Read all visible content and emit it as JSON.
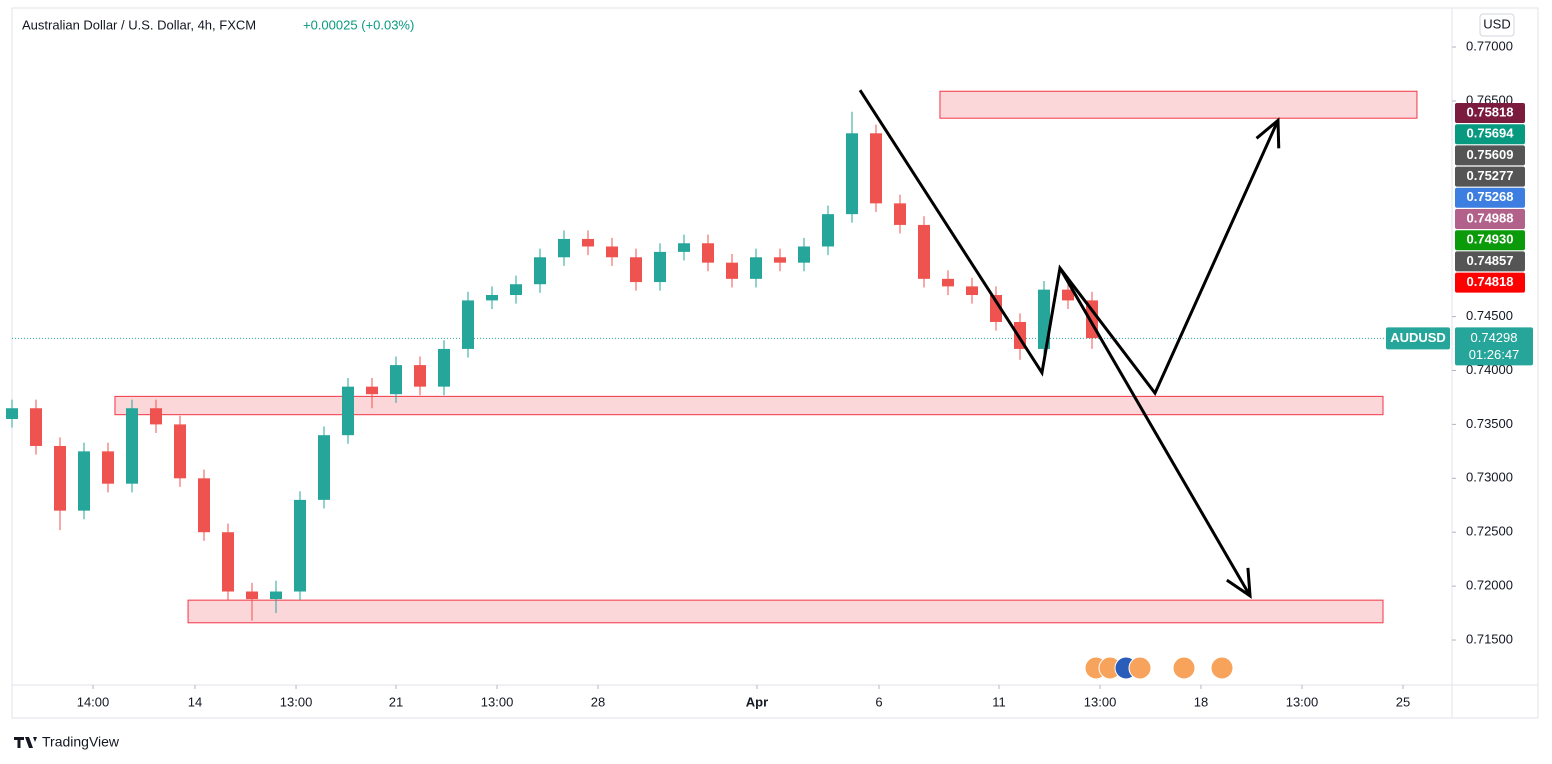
{
  "chart_data": {
    "type": "candlestick",
    "title": "Australian Dollar / U.S. Dollar, 4h, FXCM",
    "change": "+0.00025 (+0.03%)",
    "currency": "USD",
    "branding": "TradingView",
    "up_color": "#26a69a",
    "down_color": "#ef5350",
    "x": [
      0,
      2,
      4,
      6,
      8,
      10,
      12,
      14,
      16,
      18,
      20,
      22,
      24,
      26,
      28,
      30,
      32,
      34,
      36,
      38,
      40,
      42,
      44,
      46,
      48,
      50,
      52,
      54,
      56,
      58,
      60,
      62,
      64,
      66,
      68,
      70,
      72,
      74,
      76,
      78,
      80,
      82,
      84,
      86,
      88,
      90
    ],
    "open": [
      0.7355,
      0.7365,
      0.733,
      0.727,
      0.7325,
      0.7295,
      0.7365,
      0.735,
      0.73,
      0.725,
      0.7195,
      0.7188,
      0.7195,
      0.728,
      0.734,
      0.7385,
      0.7378,
      0.7405,
      0.7385,
      0.742,
      0.7465,
      0.747,
      0.748,
      0.7505,
      0.7522,
      0.7515,
      0.7505,
      0.7482,
      0.751,
      0.7518,
      0.75,
      0.7485,
      0.7505,
      0.75,
      0.7515,
      0.7545,
      0.762,
      0.7555,
      0.7535,
      0.7485,
      0.7478,
      0.747,
      0.7445,
      0.742,
      0.7475,
      0.7465
    ],
    "high": [
      0.7373,
      0.7373,
      0.7338,
      0.7333,
      0.7333,
      0.7373,
      0.7373,
      0.7358,
      0.7308,
      0.7258,
      0.7203,
      0.7205,
      0.7288,
      0.7348,
      0.7393,
      0.7393,
      0.7413,
      0.7413,
      0.7428,
      0.7473,
      0.7478,
      0.7488,
      0.7513,
      0.753,
      0.753,
      0.7523,
      0.7513,
      0.7518,
      0.7526,
      0.7526,
      0.7508,
      0.7513,
      0.7513,
      0.7523,
      0.7553,
      0.764,
      0.7628,
      0.7563,
      0.7543,
      0.7493,
      0.7486,
      0.7478,
      0.7453,
      0.7483,
      0.7483,
      0.7473
    ],
    "low": [
      0.7347,
      0.7322,
      0.7252,
      0.7262,
      0.7287,
      0.7287,
      0.7342,
      0.7292,
      0.7242,
      0.7187,
      0.7168,
      0.7175,
      0.7187,
      0.7272,
      0.7332,
      0.7365,
      0.737,
      0.7377,
      0.7377,
      0.7412,
      0.7457,
      0.7462,
      0.7472,
      0.7497,
      0.7507,
      0.7497,
      0.7474,
      0.7474,
      0.7502,
      0.7492,
      0.7477,
      0.7477,
      0.7492,
      0.7492,
      0.7507,
      0.7537,
      0.7547,
      0.7527,
      0.7477,
      0.747,
      0.7462,
      0.7437,
      0.741,
      0.7412,
      0.7457,
      0.742
    ],
    "close": [
      0.7365,
      0.733,
      0.727,
      0.7325,
      0.7295,
      0.7365,
      0.735,
      0.73,
      0.725,
      0.7195,
      0.7188,
      0.7195,
      0.728,
      0.734,
      0.7385,
      0.7378,
      0.7405,
      0.7385,
      0.742,
      0.7465,
      0.747,
      0.748,
      0.7505,
      0.7522,
      0.7515,
      0.7505,
      0.7482,
      0.751,
      0.7518,
      0.75,
      0.7485,
      0.7505,
      0.75,
      0.7515,
      0.7545,
      0.762,
      0.7555,
      0.7535,
      0.7485,
      0.7478,
      0.747,
      0.7445,
      0.742,
      0.7475,
      0.7465,
      0.743
    ],
    "xlim": [
      0,
      120
    ],
    "xticks": [
      {
        "value": 6.75,
        "label": "14:00"
      },
      {
        "value": 15.25,
        "label": "14"
      },
      {
        "value": 23.67,
        "label": "13:00"
      },
      {
        "value": 32,
        "label": "21"
      },
      {
        "value": 40.42,
        "label": "13:00"
      },
      {
        "value": 48.83,
        "label": "28"
      },
      {
        "value": 62.08,
        "label": "Apr"
      },
      {
        "value": 72.25,
        "label": "6"
      },
      {
        "value": 82.25,
        "label": "11"
      },
      {
        "value": 90.67,
        "label": "13:00"
      },
      {
        "value": 99.08,
        "label": "18"
      },
      {
        "value": 107.5,
        "label": "13:00"
      },
      {
        "value": 115.92,
        "label": "25"
      }
    ],
    "ylim": [
      0.71083,
      0.77362
    ],
    "yticks": [
      {
        "value": 0.715,
        "label": "0.71500"
      },
      {
        "value": 0.72,
        "label": "0.72000"
      },
      {
        "value": 0.725,
        "label": "0.72500"
      },
      {
        "value": 0.73,
        "label": "0.73000"
      },
      {
        "value": 0.735,
        "label": "0.73500"
      },
      {
        "value": 0.74,
        "label": "0.74000"
      },
      {
        "value": 0.745,
        "label": "0.74500"
      },
      {
        "value": 0.765,
        "label": "0.76500"
      },
      {
        "value": 0.77,
        "label": "0.77000"
      }
    ],
    "last_price": {
      "symbol": "AUDUSD",
      "value": 0.74298,
      "label": "0.74298",
      "countdown": "01:26:47",
      "color": "#26a69a"
    },
    "price_labels": [
      {
        "value": 0.75818,
        "label": "0.75818",
        "color": "#7b1c3e"
      },
      {
        "value": 0.75694,
        "label": "0.75694",
        "color": "#089981"
      },
      {
        "value": 0.75609,
        "label": "0.75609",
        "color": "#555555"
      },
      {
        "value": 0.75277,
        "label": "0.75277",
        "color": "#555555"
      },
      {
        "value": 0.75268,
        "label": "0.75268",
        "color": "#3d7fe0"
      },
      {
        "value": 0.74988,
        "label": "0.74988",
        "color": "#b2628a"
      },
      {
        "value": 0.7493,
        "label": "0.74930",
        "color": "#0a9a0a"
      },
      {
        "value": 0.74857,
        "label": "0.74857",
        "color": "#555555"
      },
      {
        "value": 0.74818,
        "label": "0.74818",
        "color": "#ff0000"
      }
    ],
    "zones": [
      {
        "x": [
          77.33,
          117.08
        ],
        "y": [
          0.7634,
          0.7659
        ]
      },
      {
        "x": [
          8.58,
          114.25
        ],
        "y": [
          0.7359,
          0.7376
        ]
      },
      {
        "x": [
          14.67,
          114.25
        ],
        "y": [
          0.7166,
          0.7187
        ]
      }
    ],
    "lines": [
      {
        "x": [
          70.67,
          85.83,
          87.33,
          95.25,
          105.5
        ],
        "y": [
          0.766,
          0.7398,
          0.7495,
          0.7379,
          0.7632
        ]
      },
      {
        "x": [
          87.33,
          103.17
        ],
        "y": [
          0.7495,
          0.7191
        ]
      }
    ]
  }
}
